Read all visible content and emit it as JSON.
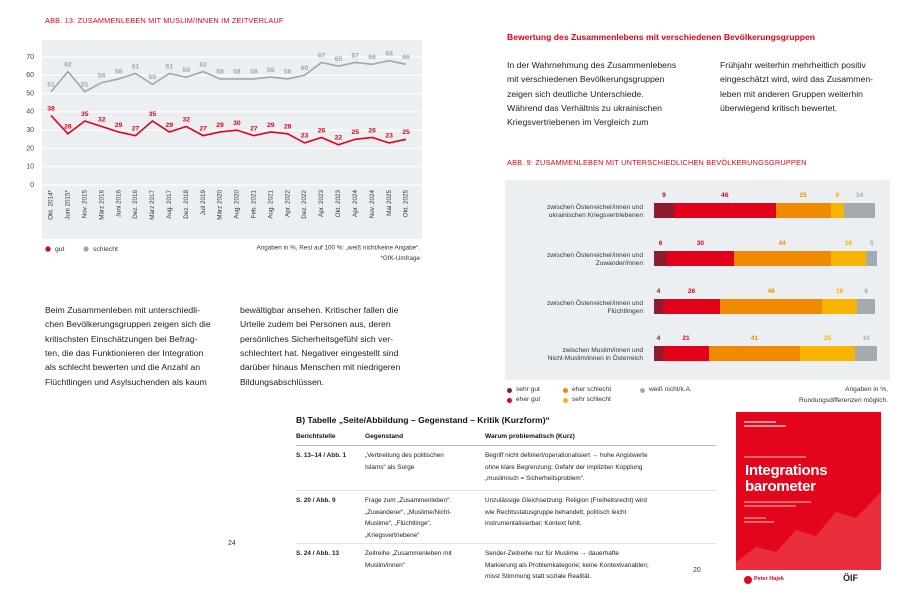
{
  "chart_data": [
    {
      "type": "line",
      "title": "ABB. 13: ZUSAMMENLEBEN MIT MUSLIM/INNEN IM ZEITVERLAUF",
      "categories": [
        "Okt. 2014*",
        "Juni 2015*",
        "Nov. 2015",
        "März 2016",
        "Juni 2016",
        "Dez. 2016",
        "März 2017",
        "Aug. 2017",
        "Dez. 2018",
        "Juli 2019",
        "März 2020",
        "Aug. 2020",
        "Feb. 2021",
        "Aug. 2021",
        "Apr. 2022",
        "Dez. 2022",
        "Apr. 2023",
        "Okt. 2023",
        "Apr. 2024",
        "Nov. 2024",
        "Mai 2025",
        "Okt. 2025"
      ],
      "series": [
        {
          "name": "gut",
          "color": "#e2001a",
          "values": [
            38,
            28,
            35,
            32,
            29,
            27,
            35,
            29,
            32,
            27,
            29,
            30,
            27,
            29,
            28,
            23,
            26,
            22,
            25,
            26,
            23,
            25
          ]
        },
        {
          "name": "schlecht",
          "color": "#9ea7ae",
          "values": [
            51,
            62,
            51,
            56,
            58,
            61,
            55,
            61,
            59,
            62,
            58,
            58,
            58,
            59,
            58,
            60,
            67,
            65,
            67,
            66,
            68,
            66
          ]
        }
      ],
      "ylim": [
        0,
        70
      ],
      "yticks": [
        0,
        10,
        20,
        30,
        40,
        50,
        60,
        70
      ],
      "grid": true,
      "notes": [
        "Angaben in %, Rest auf 100 %: „weiß nicht/keine Angabe“.",
        "*GfK-Umfrage"
      ]
    },
    {
      "type": "stacked-bar-horizontal",
      "title": "ABB. 9: ZUSAMMENLEBEN MIT UNTERSCHIEDLICHEN BEVÖLKERUNGSGRUPPEN",
      "categories": [
        "zwischen Österreicher/innen und\nukrainischen Kriegsvertriebenen",
        "zwischen Österreicher/innen und\nZuwander/innen",
        "zwischen Österreicher/innen und\nFlüchtlingen",
        "zwischen Muslim/innen und\nNicht-Muslim/innen in Österreich"
      ],
      "series": [
        {
          "name": "sehr gut",
          "color": "#8c1c2e",
          "values": [
            9,
            6,
            4,
            4
          ]
        },
        {
          "name": "eher gut",
          "color": "#e2001a",
          "values": [
            46,
            30,
            26,
            21
          ]
        },
        {
          "name": "eher schlecht",
          "color": "#f08a00",
          "values": [
            25,
            44,
            46,
            41
          ]
        },
        {
          "name": "sehr schlecht",
          "color": "#f8b400",
          "values": [
            6,
            16,
            16,
            25
          ]
        },
        {
          "name": "weiß nicht/k.A.",
          "color": "#a3abb1",
          "values": [
            14,
            5,
            8,
            10
          ]
        }
      ],
      "xlim": [
        0,
        100
      ],
      "notes": [
        "Angaben in %,",
        "Rundungsdifferenzen möglich."
      ]
    }
  ],
  "left_page": {
    "body_columns": [
      [
        "Beim Zusammenleben mit unterschiedli-",
        "chen Bevölkerungsgruppen zeigen sich die",
        "kritischsten Einschätzungen bei Befrag-",
        "ten, die das Funktionieren der Integration",
        "als schlecht bewerten und die Anzahl an",
        "Flüchtlingen und Asylsuchenden als kaum"
      ],
      [
        "bewältigbar ansehen. Kritischer fallen die",
        "Urteile zudem bei Personen aus, deren",
        "persönliches Sicherheitsgefühl sich ver-",
        "schlechtert hat. Negativer eingestellt sind",
        "darüber hinaus Menschen mit niedrigeren",
        "Bildungsabschlüssen."
      ]
    ],
    "page_number": "24"
  },
  "right_page": {
    "heading": "Bewertung des Zusammenlebens mit verschiedenen Bevölkerungsgruppen",
    "body_columns": [
      [
        "In der Wahrnehmung des Zusammenlebens",
        "mit verschiedenen Bevölkerungsgruppen",
        "zeigen sich deutliche Unterschiede.",
        "Während das Verhältnis zu ukrainischen",
        "Kriegsvertriebenen im Vergleich zum"
      ],
      [
        "Frühjahr weiterhin mehrheitlich positiv",
        "eingeschätzt wird, wird das Zusammen-",
        "leben mit anderen Gruppen weiterhin",
        "überwiegend kritisch bewertet."
      ]
    ],
    "page_number": "20"
  },
  "table": {
    "title": "B) Tabelle „Seite/Abbildung – Gegenstand – Kritik (Kurzform)“",
    "headers": [
      "Berichtstelle",
      "Gegenstand",
      "Warum problematisch (Kurz)"
    ],
    "rows": [
      [
        [
          "S. 13–14 / Abb. 1"
        ],
        [
          "„Verbreitung des politischen",
          "Islams“ als Sorge"
        ],
        [
          "Begriff nicht definiert/operationalisiert → hohe Angstwerte",
          "ohne klare Begrenzung; Gefahr der impliziten Kopplung",
          "„muslimisch = Sicherheitsproblem“."
        ]
      ],
      [
        [
          "S. 20 / Abb. 9"
        ],
        [
          "Frage zum „Zusammenleben“:",
          "„Zuwanderer“, „Muslime/Nicht-",
          "Muslime“, „Flüchtlinge“,",
          "„Kriegsvertriebene“"
        ],
        [
          "Unzulässige Gleichsetzung: Religion (Freiheitsrecht) wird",
          "wie Rechtsstatusgruppe behandelt; politisch leicht",
          "instrumentalisierbar; Kontext fehlt."
        ]
      ],
      [
        [
          "S. 24 / Abb. 13"
        ],
        [
          "Zeitreihe „Zusammenleben mit",
          "Muslim/innen“"
        ],
        [
          "Sender-Zeitreihe nur für Muslime → dauerhafte",
          "Markierung als Problemkategorie; keine Kontextvariablen;",
          "misst Stimmung statt soziale Realität."
        ]
      ]
    ]
  },
  "cover": {
    "title_lines": [
      "Integrations",
      "barometer"
    ],
    "publisher": "Peter Hajek",
    "partner": "ÖIF"
  }
}
